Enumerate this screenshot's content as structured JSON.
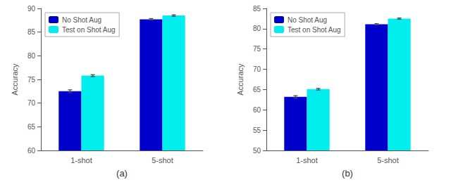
{
  "chart_data": [
    {
      "type": "bar",
      "title": "(a)",
      "ylabel": "Accuracy",
      "categories": [
        "1-shot",
        "5-shot"
      ],
      "series": [
        {
          "name": "No Shot Aug",
          "color": "#0000CC",
          "values": [
            72.5,
            87.7
          ],
          "errors": [
            0.3,
            0.15
          ]
        },
        {
          "name": "Test on Shot Aug",
          "color": "#00EEEE",
          "values": [
            75.8,
            88.5
          ],
          "errors": [
            0.2,
            0.15
          ]
        }
      ],
      "ylim": [
        60,
        90
      ],
      "yticks": [
        60,
        65,
        70,
        75,
        80,
        85,
        90
      ],
      "grid": false,
      "legend": "upper left"
    },
    {
      "type": "bar",
      "title": "(b)",
      "ylabel": "Accuracy",
      "categories": [
        "1-shot",
        "5-shot"
      ],
      "series": [
        {
          "name": "No Shot Aug",
          "color": "#0000CC",
          "values": [
            63.2,
            81.1
          ],
          "errors": [
            0.3,
            0.15
          ]
        },
        {
          "name": "Test on Shot Aug",
          "color": "#00EEEE",
          "values": [
            65.1,
            82.5
          ],
          "errors": [
            0.2,
            0.15
          ]
        }
      ],
      "ylim": [
        50,
        85
      ],
      "yticks": [
        50,
        55,
        60,
        65,
        70,
        75,
        80,
        85
      ],
      "grid": false,
      "legend": "upper left"
    }
  ]
}
